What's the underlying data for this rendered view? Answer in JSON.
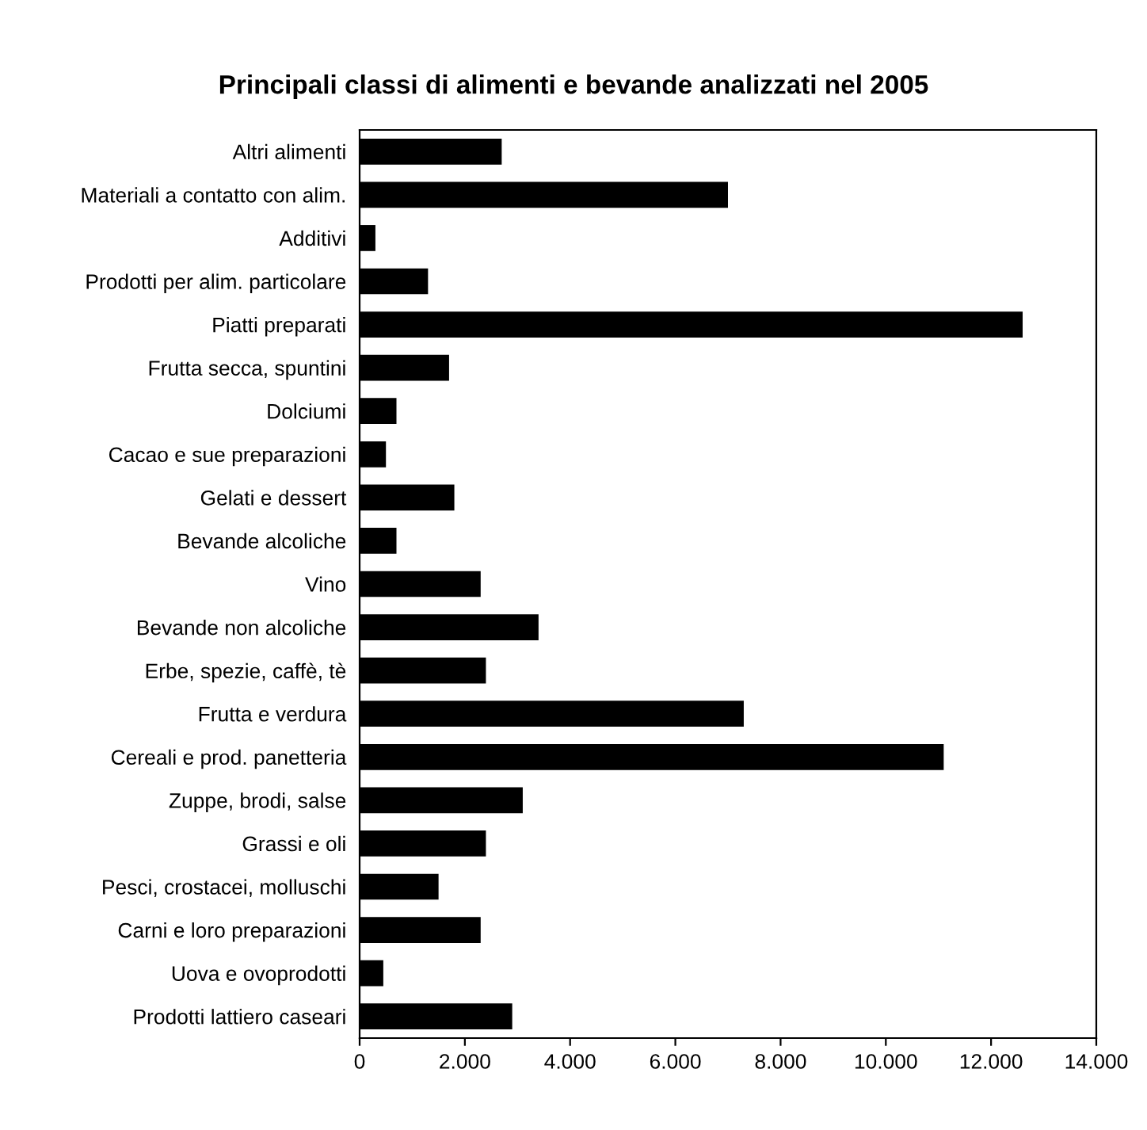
{
  "chart_data": {
    "type": "bar",
    "orientation": "horizontal",
    "title": "Principali classi di alimenti e bevande analizzati nel 2005",
    "categories": [
      "Altri alimenti",
      "Materiali a contatto con alim.",
      "Additivi",
      "Prodotti per alim. particolare",
      "Piatti preparati",
      "Frutta secca, spuntini",
      "Dolciumi",
      "Cacao e sue preparazioni",
      "Gelati e dessert",
      "Bevande alcoliche",
      "Vino",
      "Bevande non alcoliche",
      "Erbe, spezie, caffè, tè",
      "Frutta e verdura",
      "Cereali e prod. panetteria",
      "Zuppe, brodi, salse",
      "Grassi e oli",
      "Pesci, crostacei, molluschi",
      "Carni e loro preparazioni",
      "Uova e ovoprodotti",
      "Prodotti lattiero caseari"
    ],
    "values": [
      2700,
      7000,
      300,
      1300,
      12600,
      1700,
      700,
      500,
      1800,
      700,
      2300,
      3400,
      2400,
      7300,
      11100,
      3100,
      2400,
      1500,
      2300,
      450,
      2900
    ],
    "color": "#000000",
    "xlim": [
      0,
      14000
    ],
    "xticks": [
      {
        "value": 0,
        "label": "0"
      },
      {
        "value": 2000,
        "label": "2.000"
      },
      {
        "value": 4000,
        "label": "4.000"
      },
      {
        "value": 6000,
        "label": "6.000"
      },
      {
        "value": 8000,
        "label": "8.000"
      },
      {
        "value": 10000,
        "label": "10.000"
      },
      {
        "value": 12000,
        "label": "12.000"
      },
      {
        "value": 14000,
        "label": "14.000"
      }
    ],
    "grid": false,
    "legend": false
  }
}
